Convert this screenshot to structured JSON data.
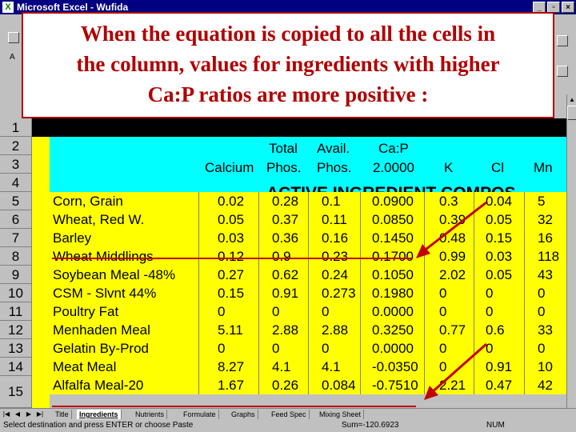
{
  "window": {
    "title": "Microsoft Excel - Wufida",
    "app_icon": "X",
    "minimize": "_",
    "restore": "▫",
    "close": "×"
  },
  "toolbar": {
    "partial_label": "A"
  },
  "callout": {
    "lines": [
      "When the equation is copied to all the cells in",
      "the column, values for ingredients with higher",
      "Ca:P ratios are more positive :"
    ],
    "color": "#b00000"
  },
  "rows": {
    "numbers": [
      "1",
      "2",
      "3",
      "4",
      "5",
      "6",
      "7",
      "8",
      "9",
      "10",
      "11",
      "12",
      "13",
      "14",
      "15"
    ]
  },
  "headers": {
    "row2": {
      "total": "Total",
      "avail": "Avail.",
      "cap": "Ca:P"
    },
    "row3": {
      "calcium": "Calcium",
      "phos": "Phos.",
      "aphos": "Phos.",
      "ratio": "2.0000",
      "k": "K",
      "cl": "Cl",
      "mn": "Mn"
    },
    "row4": {
      "title": "ACTIVE INGREDIENT COMPOS"
    }
  },
  "ingredients": [
    {
      "name": "Corn, Grain",
      "calcium": "0.02",
      "total_phos": "0.28",
      "avail_phos": "0.1",
      "cap": "0.0900",
      "k": "0.3",
      "cl": "0.04",
      "mn": "5"
    },
    {
      "name": "Wheat, Red W.",
      "calcium": "0.05",
      "total_phos": "0.37",
      "avail_phos": "0.11",
      "cap": "0.0850",
      "k": "0.39",
      "cl": "0.05",
      "mn": "32"
    },
    {
      "name": "Barley",
      "calcium": "0.03",
      "total_phos": "0.36",
      "avail_phos": "0.16",
      "cap": "0.1450",
      "k": "0.48",
      "cl": "0.15",
      "mn": "16"
    },
    {
      "name": "Wheat Middlings",
      "calcium": "0.12",
      "total_phos": "0.9",
      "avail_phos": "0.23",
      "cap": "0.1700",
      "k": "0.99",
      "cl": "0.03",
      "mn": "118"
    },
    {
      "name": "Soybean Meal -48%",
      "calcium": "0.27",
      "total_phos": "0.62",
      "avail_phos": "0.24",
      "cap": "0.1050",
      "k": "2.02",
      "cl": "0.05",
      "mn": "43"
    },
    {
      "name": "CSM - Slvnt 44%",
      "calcium": "0.15",
      "total_phos": "0.91",
      "avail_phos": "0.273",
      "cap": "0.1980",
      "k": "0",
      "cl": "0",
      "mn": "0"
    },
    {
      "name": "Poultry Fat",
      "calcium": "0",
      "total_phos": "0",
      "avail_phos": "0",
      "cap": "0.0000",
      "k": "0",
      "cl": "0",
      "mn": "0"
    },
    {
      "name": "Menhaden Meal",
      "calcium": "5.11",
      "total_phos": "2.88",
      "avail_phos": "2.88",
      "cap": "0.3250",
      "k": "0.77",
      "cl": "0.6",
      "mn": "33"
    },
    {
      "name": "Gelatin By-Prod",
      "calcium": "0",
      "total_phos": "0",
      "avail_phos": "0",
      "cap": "0.0000",
      "k": "0",
      "cl": "0",
      "mn": "0"
    },
    {
      "name": "Meat Meal",
      "calcium": "8.27",
      "total_phos": "4.1",
      "avail_phos": "4.1",
      "cap": "-0.0350",
      "k": "0",
      "cl": "0.91",
      "mn": "10"
    },
    {
      "name": "Alfalfa Meal-20",
      "calcium": "1.67",
      "total_phos": "0.26",
      "avail_phos": "0.084",
      "cap": "-0.7510",
      "k": "2.21",
      "cl": "0.47",
      "mn": "42"
    }
  ],
  "tabs": [
    "Title",
    "Ingredients",
    "Nutrients",
    "Formulate",
    "Graphs",
    "Feed Spec",
    "Mixing Sheet"
  ],
  "status": {
    "message": "Select destination and press ENTER or choose Paste",
    "sum": "Sum=-120.6923",
    "num": "NUM"
  }
}
